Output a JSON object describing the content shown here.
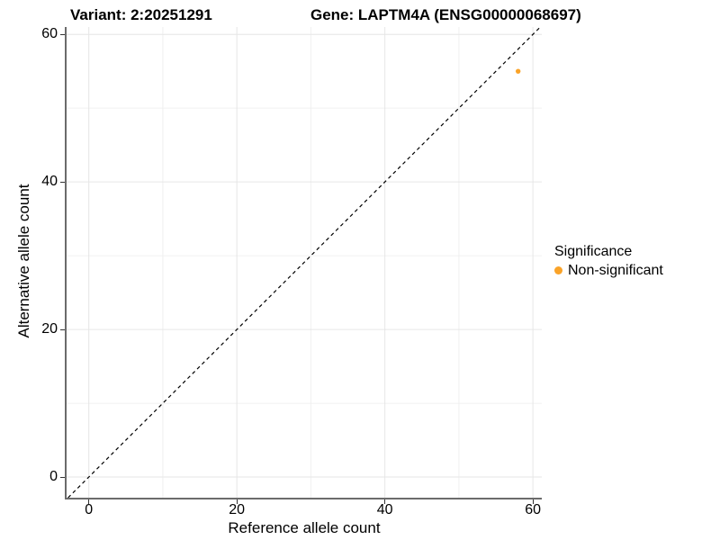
{
  "chart_data": {
    "type": "scatter",
    "title_left": "Variant: 2:20251291",
    "title_right": "Gene: LAPTM4A (ENSG00000068697)",
    "xlabel": "Reference allele count",
    "ylabel": "Alternative allele count",
    "xlim": [
      -3,
      61.2
    ],
    "ylim": [
      -2.8,
      61.0
    ],
    "x_major_ticks": [
      0,
      20,
      40,
      60
    ],
    "x_minor_gridlines": [
      10,
      30,
      50
    ],
    "y_major_ticks": [
      0,
      20,
      40,
      60
    ],
    "y_minor_gridlines": [
      10,
      30,
      50
    ],
    "grid": "major+minor",
    "points": [
      {
        "x": 58,
        "y": 55,
        "series": "Non-significant"
      }
    ],
    "reference_line": {
      "type": "identity",
      "slope": 1,
      "intercept": 0,
      "style": "dashed",
      "color": "#000000"
    },
    "legend": {
      "title": "Significance",
      "position": "right",
      "entries": [
        {
          "label": "Non-significant",
          "color": "#FAA328"
        }
      ]
    },
    "colors": {
      "point": "#FAA328",
      "grid_major": "#E6E6E6",
      "grid_minor": "#F0F0F0",
      "axis_line": "#6B6B6B",
      "tick": "#333333",
      "text": "#000000",
      "background": "#FFFFFF"
    }
  }
}
